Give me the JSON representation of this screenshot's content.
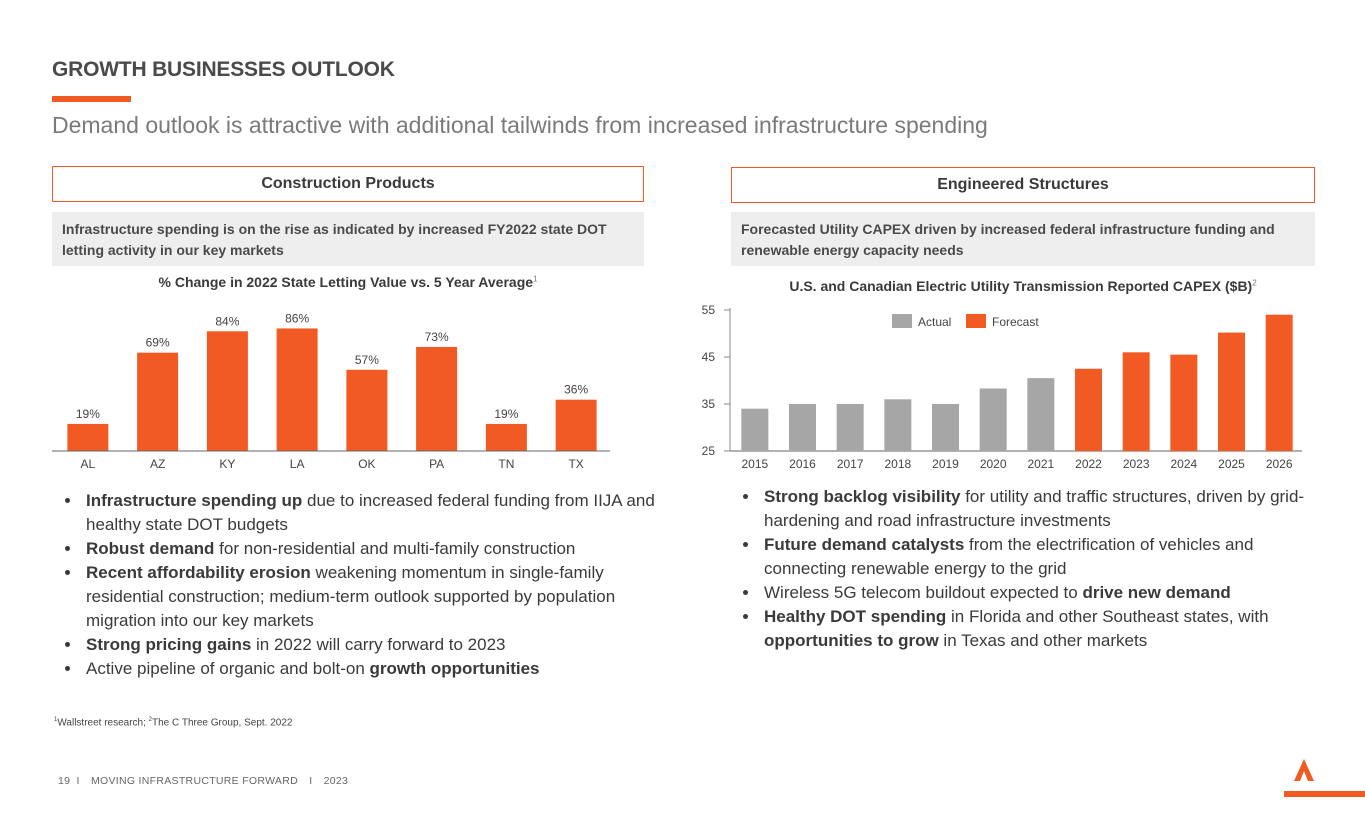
{
  "header": {
    "title": "GROWTH BUSINESSES OUTLOOK",
    "subtitle": "Demand outlook is attractive with additional tailwinds from increased infrastructure spending"
  },
  "left": {
    "section_title": "Construction Products",
    "highlight": "Infrastructure spending is on the rise as indicated by increased FY2022 state DOT letting activity in our key markets",
    "bullets": [
      {
        "bold": "Infrastructure spending up",
        "text": " due to increased federal funding from IIJA and healthy state DOT budgets"
      },
      {
        "bold": "Robust demand",
        "text": " for non-residential and multi-family construction"
      },
      {
        "bold": "Recent affordability erosion",
        "text": "  weakening momentum in single-family residential construction; medium-term outlook supported by population migration into our key markets"
      },
      {
        "bold": "Strong pricing gains",
        "text": " in 2022 will carry forward to 2023"
      },
      {
        "pre": "Active pipeline of organic and bolt-on ",
        "bold": "growth opportunities"
      }
    ]
  },
  "right": {
    "section_title": "Engineered Structures",
    "highlight": "Forecasted Utility CAPEX driven by increased federal infrastructure funding and renewable energy capacity needs",
    "bullets": [
      {
        "bold": "Strong backlog visibility",
        "text": " for utility and traffic structures, driven by grid-hardening and road infrastructure investments"
      },
      {
        "bold": "Future demand catalysts",
        "text": " from the electrification of vehicles and connecting renewable energy to the grid"
      },
      {
        "pre": "Wireless 5G telecom buildout expected to ",
        "bold": "drive new demand"
      },
      {
        "bold": "Healthy DOT spending",
        "text": " in Florida and other Southeast states, with ",
        "bold2": "opportunities to grow",
        "text2": " in Texas and other markets"
      }
    ]
  },
  "chart_data": [
    {
      "type": "bar",
      "title": "% Change in 2022 State Letting Value vs. 5 Year Average",
      "title_sup": "1",
      "categories": [
        "AL",
        "AZ",
        "KY",
        "LA",
        "OK",
        "PA",
        "TN",
        "TX"
      ],
      "values": [
        19,
        69,
        84,
        86,
        57,
        73,
        19,
        36
      ],
      "labels": [
        "19%",
        "69%",
        "84%",
        "86%",
        "57%",
        "73%",
        "19%",
        "36%"
      ],
      "ylim": [
        0,
        100
      ],
      "color": "#f15a22"
    },
    {
      "type": "bar",
      "title": "U.S. and Canadian Electric Utility Transmission Reported CAPEX ($B)",
      "title_sup": "2",
      "categories": [
        "2015",
        "2016",
        "2017",
        "2018",
        "2019",
        "2020",
        "2021",
        "2022",
        "2023",
        "2024",
        "2025",
        "2026"
      ],
      "values": [
        34,
        35,
        35,
        36,
        35,
        38.3,
        40.5,
        42.5,
        46,
        45.5,
        50.2,
        54
      ],
      "kind": [
        "Actual",
        "Actual",
        "Actual",
        "Actual",
        "Actual",
        "Actual",
        "Actual",
        "Forecast",
        "Forecast",
        "Forecast",
        "Forecast",
        "Forecast"
      ],
      "ylim": [
        25,
        55
      ],
      "yticks": [
        "25",
        "35",
        "45",
        "55"
      ],
      "ytick_values": [
        25,
        35,
        45,
        55
      ],
      "legend": [
        {
          "name": "Actual",
          "color": "#a6a6a6"
        },
        {
          "name": "Forecast",
          "color": "#f15a22"
        }
      ]
    }
  ],
  "footnote": {
    "sup1": "1",
    "text1": "Wallstreet research; ",
    "sup2": "2",
    "text2": "The C Three Group, Sept. 2022"
  },
  "footer": {
    "page": "19",
    "sep1": "I",
    "tagline": "MOVING INFRASTRUCTURE FORWARD",
    "sep2": "I",
    "year": "2023"
  },
  "colors": {
    "accent": "#f15a22",
    "actual": "#a6a6a6"
  }
}
